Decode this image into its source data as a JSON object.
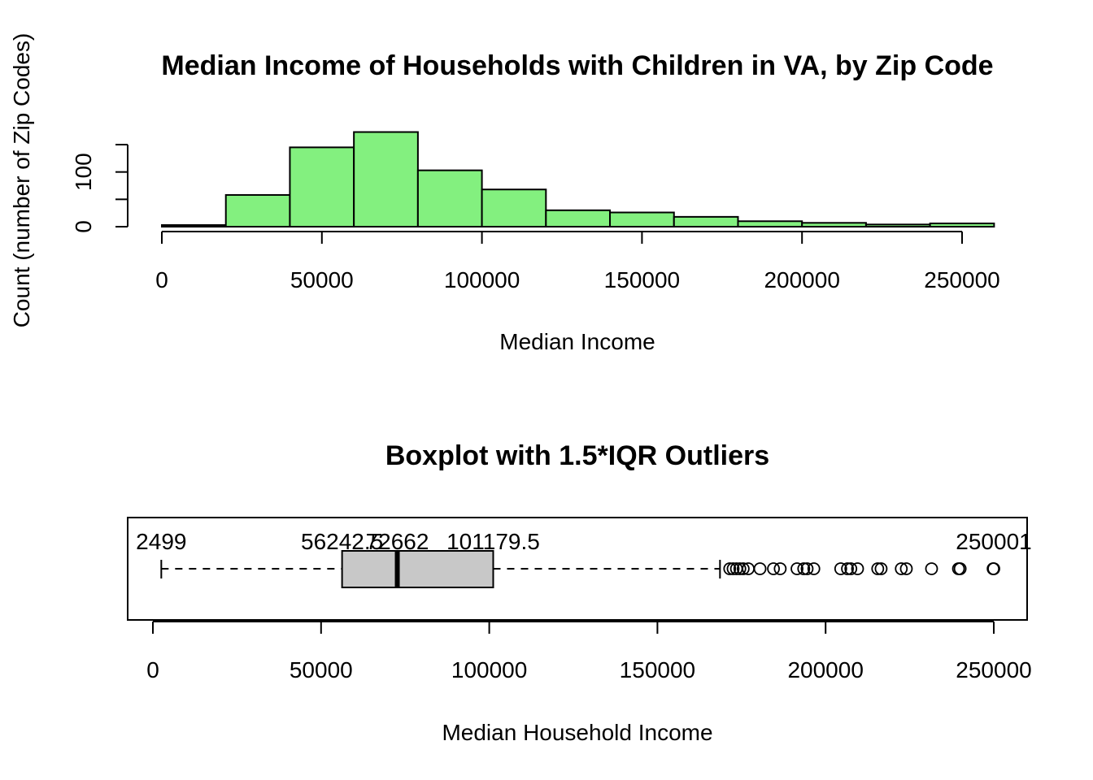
{
  "colors": {
    "hist_fill": "#83f07f",
    "box_fill": "#c8c8c8",
    "stroke": "#000000"
  },
  "chart_data": [
    {
      "type": "bar",
      "subtype": "histogram",
      "title": "Median Income of Households with Children in VA, by Zip Code",
      "xlabel": "Median Income",
      "ylabel": "Count (number of Zip Codes)",
      "bin_edges": [
        0,
        20000,
        40000,
        60000,
        80000,
        100000,
        120000,
        140000,
        160000,
        180000,
        200000,
        220000,
        240000,
        260000
      ],
      "values": [
        3,
        58,
        145,
        173,
        103,
        68,
        30,
        26,
        18,
        10,
        7,
        4,
        6
      ],
      "xticks": [
        0,
        50000,
        100000,
        150000,
        200000,
        250000
      ],
      "xtick_labels": [
        "0",
        "50000",
        "100000",
        "150000",
        "200000",
        "250000"
      ],
      "yticks": [
        0,
        50,
        100,
        150
      ],
      "ytick_labels": [
        "0",
        "",
        "100",
        ""
      ],
      "xlim": [
        0,
        260000
      ],
      "ylim": [
        0,
        150
      ],
      "grid": false
    },
    {
      "type": "boxplot",
      "orientation": "horizontal",
      "title": "Boxplot with 1.5*IQR Outliers",
      "xlabel": "Median Household Income",
      "xlim": [
        -2000,
        258000
      ],
      "xticks": [
        0,
        50000,
        100000,
        150000,
        200000,
        250000
      ],
      "xtick_labels": [
        "0",
        "50000",
        "100000",
        "150000",
        "200000",
        "250000"
      ],
      "whisker_low": 2499,
      "q1": 56242.5,
      "median": 72662,
      "q3": 101179.5,
      "whisker_high": 168600,
      "max": 250001,
      "outliers": [
        171500,
        172500,
        173500,
        174500,
        175500,
        177000,
        180500,
        184500,
        186500,
        191500,
        193500,
        194500,
        196500,
        204500,
        206500,
        207500,
        209500,
        215500,
        216500,
        222500,
        224000,
        231500,
        239500,
        240000,
        249800,
        250001
      ],
      "annotations": [
        "2499",
        "56242.5",
        "72662",
        "101179.5",
        "250001"
      ],
      "grid": false
    }
  ]
}
